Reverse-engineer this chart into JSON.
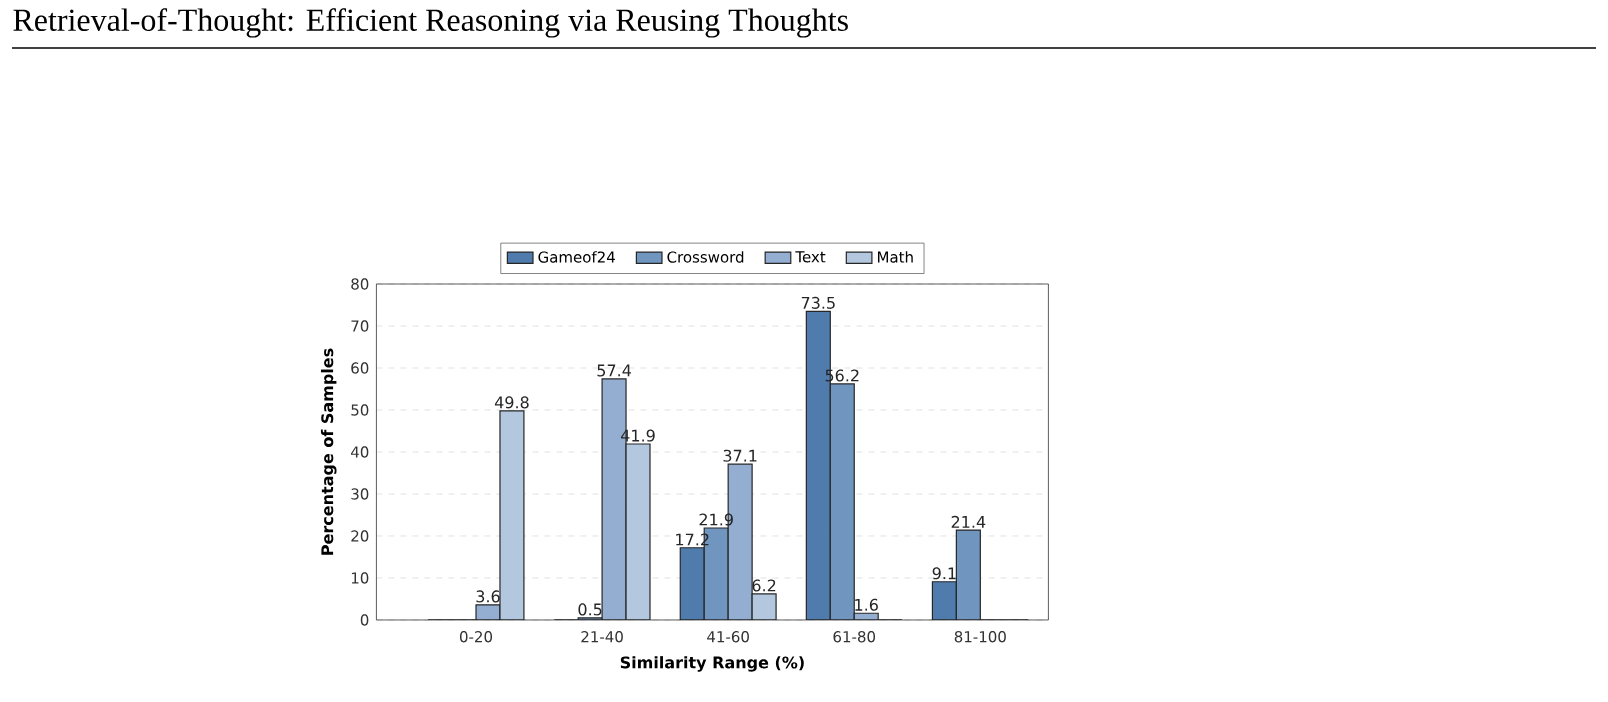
{
  "chart_data": {
    "type": "bar",
    "title": "Retrieval-of-Thought: Efficient Reasoning via Reusing Thoughts",
    "xlabel": "Similarity Range (%)",
    "ylabel": "Percentage of Samples",
    "categories": [
      "0-20",
      "21-40",
      "41-60",
      "61-80",
      "81-100"
    ],
    "series": [
      {
        "name": "Gameof24",
        "color": "#4f7cac",
        "values": [
          0,
          0,
          17.2,
          73.5,
          9.1
        ],
        "value_labels": [
          null,
          null,
          "17.2",
          "73.5",
          "9.1"
        ]
      },
      {
        "name": "Crossword",
        "color": "#7096c0",
        "values": [
          0,
          0.5,
          21.9,
          56.2,
          21.4
        ],
        "value_labels": [
          null,
          "0.5",
          "21.9",
          "56.2",
          "21.4"
        ]
      },
      {
        "name": "Text",
        "color": "#93aed0",
        "values": [
          3.6,
          57.4,
          37.1,
          1.6,
          0
        ],
        "value_labels": [
          "3.6",
          "57.4",
          "37.1",
          "1.6",
          null
        ]
      },
      {
        "name": "Math",
        "color": "#b3c8de",
        "values": [
          49.8,
          41.9,
          6.2,
          0,
          0
        ],
        "value_labels": [
          "49.8",
          "41.9",
          "6.2",
          null,
          null
        ]
      }
    ],
    "ylim": [
      0,
      80
    ],
    "yticks": [
      0,
      10,
      20,
      30,
      40,
      50,
      60,
      70,
      80
    ],
    "grid": "y",
    "legend": "top"
  }
}
